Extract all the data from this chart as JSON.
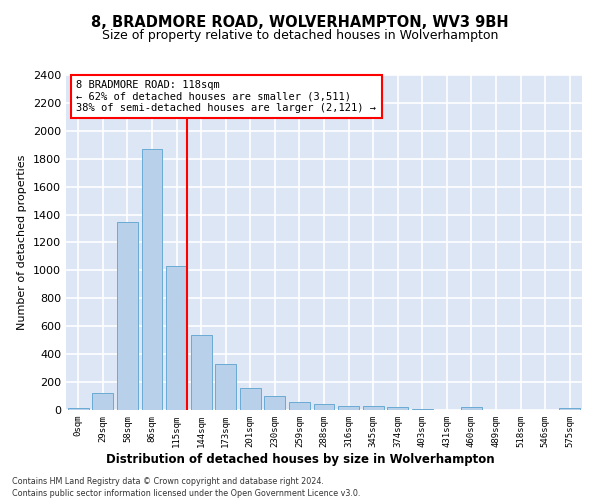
{
  "title": "8, BRADMORE ROAD, WOLVERHAMPTON, WV3 9BH",
  "subtitle": "Size of property relative to detached houses in Wolverhampton",
  "xlabel": "Distribution of detached houses by size in Wolverhampton",
  "ylabel": "Number of detached properties",
  "bar_color": "#b8d0ea",
  "bar_edge_color": "#6aaad4",
  "bg_color": "#dce6f5",
  "grid_color": "#ffffff",
  "categories": [
    "0sqm",
    "29sqm",
    "58sqm",
    "86sqm",
    "115sqm",
    "144sqm",
    "173sqm",
    "201sqm",
    "230sqm",
    "259sqm",
    "288sqm",
    "316sqm",
    "345sqm",
    "374sqm",
    "403sqm",
    "431sqm",
    "460sqm",
    "489sqm",
    "518sqm",
    "546sqm",
    "575sqm"
  ],
  "values": [
    14,
    125,
    1345,
    1870,
    1030,
    535,
    330,
    160,
    100,
    60,
    40,
    32,
    30,
    20,
    5,
    0,
    24,
    0,
    0,
    0,
    14
  ],
  "ylim": [
    0,
    2400
  ],
  "yticks": [
    0,
    200,
    400,
    600,
    800,
    1000,
    1200,
    1400,
    1600,
    1800,
    2000,
    2200,
    2400
  ],
  "annotation_title": "8 BRADMORE ROAD: 118sqm",
  "annotation_line1": "← 62% of detached houses are smaller (3,511)",
  "annotation_line2": "38% of semi-detached houses are larger (2,121) →",
  "vline_bin": 4,
  "footer_line1": "Contains HM Land Registry data © Crown copyright and database right 2024.",
  "footer_line2": "Contains public sector information licensed under the Open Government Licence v3.0."
}
